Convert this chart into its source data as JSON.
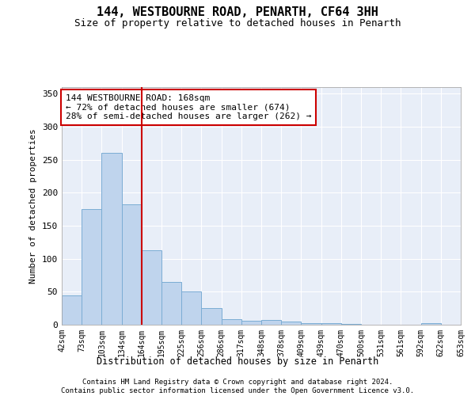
{
  "title": "144, WESTBOURNE ROAD, PENARTH, CF64 3HH",
  "subtitle": "Size of property relative to detached houses in Penarth",
  "xlabel": "Distribution of detached houses by size in Penarth",
  "ylabel": "Number of detached properties",
  "bar_values": [
    44,
    175,
    260,
    183,
    113,
    65,
    50,
    25,
    8,
    6,
    7,
    5,
    3,
    2,
    1,
    0,
    0,
    0,
    2,
    0
  ],
  "x_labels": [
    "42sqm",
    "73sqm",
    "103sqm",
    "134sqm",
    "164sqm",
    "195sqm",
    "225sqm",
    "256sqm",
    "286sqm",
    "317sqm",
    "348sqm",
    "378sqm",
    "409sqm",
    "439sqm",
    "470sqm",
    "500sqm",
    "531sqm",
    "561sqm",
    "592sqm",
    "622sqm",
    "653sqm"
  ],
  "bar_color": "#bfd4ed",
  "bar_edge_color": "#7badd4",
  "red_line_x": 3.5,
  "annotation_text": "144 WESTBOURNE ROAD: 168sqm\n← 72% of detached houses are smaller (674)\n28% of semi-detached houses are larger (262) →",
  "annotation_box_color": "#ffffff",
  "annotation_box_edge": "#cc0000",
  "ylim": [
    0,
    360
  ],
  "yticks": [
    0,
    50,
    100,
    150,
    200,
    250,
    300,
    350
  ],
  "plot_bg_color": "#e8eef8",
  "footer_text": "Contains HM Land Registry data © Crown copyright and database right 2024.\nContains public sector information licensed under the Open Government Licence v3.0.",
  "figsize": [
    6.0,
    5.0
  ],
  "dpi": 100
}
